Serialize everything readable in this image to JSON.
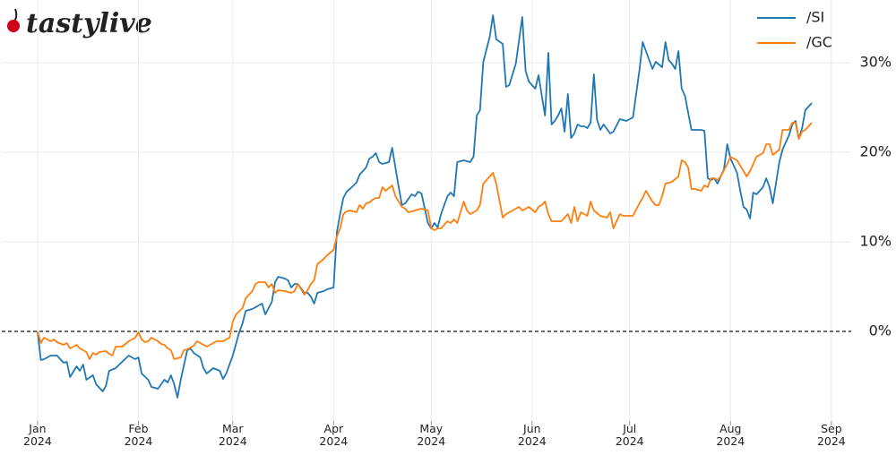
{
  "chart_data": {
    "type": "line",
    "logo": "tastylive",
    "xlim": [
      -11,
      249
    ],
    "ylim": [
      -10,
      37
    ],
    "xticks": [
      {
        "value": 0,
        "label": "Jan 2024"
      },
      {
        "value": 31,
        "label": "Feb 2024"
      },
      {
        "value": 60,
        "label": "Mar 2024"
      },
      {
        "value": 91,
        "label": "Apr 2024"
      },
      {
        "value": 121,
        "label": "May 2024"
      },
      {
        "value": 152,
        "label": "Jun 2024"
      },
      {
        "value": 182,
        "label": "Jul 2024"
      },
      {
        "value": 213,
        "label": "Aug 2024"
      },
      {
        "value": 244,
        "label": "Sep 2024"
      }
    ],
    "yticks": [
      {
        "value": 0,
        "label": "0%"
      },
      {
        "value": 10,
        "label": "10%"
      },
      {
        "value": 20,
        "label": "20%"
      },
      {
        "value": 30,
        "label": "30%"
      }
    ],
    "grid": true,
    "legend": "upper right",
    "series": [
      {
        "name": "/SI",
        "color": "#1f77b4",
        "x": [
          0,
          1,
          2,
          4,
          6,
          8,
          9,
          10,
          12,
          13,
          14,
          15,
          17,
          18,
          20,
          21,
          22,
          24,
          26,
          28,
          29,
          30,
          31,
          32,
          34,
          35,
          37,
          38,
          39,
          40,
          41,
          42,
          43,
          44,
          46,
          47,
          48,
          50,
          51,
          52,
          54,
          56,
          57,
          58,
          60,
          61,
          62,
          63,
          64,
          66,
          68,
          69,
          70,
          72,
          73,
          74,
          76,
          77,
          78,
          79,
          80,
          82,
          83,
          84,
          85,
          86,
          88,
          89,
          91,
          92,
          93,
          94,
          95,
          96,
          98,
          99,
          100,
          101,
          102,
          103,
          104,
          105,
          106,
          108,
          109,
          110,
          111,
          112,
          113,
          115,
          116,
          117,
          118,
          120,
          121,
          122,
          123,
          124,
          126,
          127,
          128,
          129,
          131,
          133,
          134,
          135,
          136,
          137,
          139,
          140,
          141,
          143,
          144,
          145,
          147,
          148,
          149,
          150,
          151,
          153,
          154,
          155,
          156,
          157,
          158,
          159,
          160,
          161,
          162,
          163,
          164,
          165,
          166,
          167,
          168,
          169,
          170,
          171,
          172,
          173,
          174,
          176,
          177,
          179,
          181,
          183,
          185,
          186,
          187,
          189,
          190,
          192,
          193,
          194,
          195,
          196,
          197,
          198,
          199,
          201,
          202,
          204,
          205,
          206,
          207,
          208,
          209,
          211,
          212,
          213,
          215,
          216,
          217,
          218,
          219,
          220,
          221,
          223,
          224,
          225,
          226,
          228,
          229,
          230,
          231,
          232,
          233,
          234,
          235,
          236,
          237,
          238
        ],
        "values": [
          0,
          -3.2,
          -3.1,
          -2.7,
          -2.7,
          -3.5,
          -3.4,
          -5.1,
          -3.9,
          -4.4,
          -3.7,
          -5.4,
          -4.9,
          -5.9,
          -6.7,
          -6.1,
          -4.4,
          -4.1,
          -3.4,
          -2.7,
          -2.9,
          -3.1,
          -2.9,
          -4.7,
          -5.4,
          -6.2,
          -6.4,
          -5.9,
          -5.4,
          -5.7,
          -4.9,
          -5.9,
          -7.4,
          -5.4,
          -2.1,
          -1.9,
          -2.4,
          -2.9,
          -4.1,
          -4.7,
          -4.1,
          -4.4,
          -5.3,
          -4.7,
          -2.7,
          -1.4,
          -0.1,
          0.9,
          2.3,
          2.5,
          2.9,
          3.1,
          1.9,
          3.3,
          5.5,
          6.1,
          5.9,
          5.7,
          4.9,
          5.3,
          5.3,
          4.3,
          4.3,
          3.9,
          3.1,
          4.3,
          4.5,
          4.7,
          4.9,
          11.1,
          13.1,
          14.9,
          15.6,
          15.9,
          16.6,
          17.5,
          17.9,
          18.3,
          19.3,
          19.5,
          19.9,
          18.9,
          18.7,
          18.9,
          20.5,
          18.3,
          16.1,
          14.1,
          14.3,
          15.3,
          15.1,
          15.6,
          15.4,
          12.1,
          11.5,
          12.1,
          11.6,
          13.1,
          15.1,
          15.5,
          15.1,
          18.9,
          19.1,
          18.9,
          19.5,
          24.1,
          24.7,
          30.1,
          32.9,
          35.3,
          32.6,
          32.1,
          27.3,
          27.5,
          29.9,
          32.5,
          35.1,
          29.1,
          27.9,
          27.1,
          28.6,
          26.3,
          24.1,
          31.1,
          23.1,
          23.5,
          24.1,
          24.9,
          22.3,
          26.5,
          21.6,
          22.1,
          23.1,
          22.9,
          22.9,
          22.7,
          23.3,
          28.7,
          23.6,
          22.5,
          23.1,
          22.1,
          22.3,
          23.7,
          23.5,
          23.9,
          29.1,
          32.3,
          31.3,
          29.3,
          30.1,
          29.5,
          32.3,
          30.3,
          29.9,
          29.3,
          31.3,
          27.1,
          26.3,
          22.5,
          22.5,
          22.5,
          22.4,
          17.1,
          16.9,
          17.1,
          16.5,
          18.1,
          20.9,
          19.3,
          17.7,
          15.7,
          13.9,
          13.6,
          12.6,
          15.5,
          15.3,
          16.1,
          17.1,
          16.1,
          14.3,
          18.9,
          20.3,
          21.1,
          21.9,
          23.1,
          23.5,
          21.5,
          22.7,
          24.7,
          25.1,
          25.5
        ]
      },
      {
        "name": "/GC",
        "color": "#ff7f0e",
        "x": [
          0,
          1,
          2,
          4,
          5,
          6,
          8,
          9,
          10,
          12,
          13,
          15,
          16,
          17,
          18,
          19,
          21,
          22,
          23,
          24,
          26,
          27,
          28,
          30,
          31,
          32,
          33,
          34,
          35,
          37,
          38,
          39,
          40,
          41,
          42,
          44,
          45,
          46,
          48,
          49,
          50,
          52,
          53,
          55,
          57,
          59,
          60,
          61,
          63,
          64,
          66,
          67,
          68,
          70,
          71,
          72,
          73,
          74,
          76,
          78,
          79,
          80,
          82,
          83,
          84,
          85,
          86,
          88,
          89,
          91,
          92,
          93,
          94,
          95,
          96,
          98,
          99,
          100,
          101,
          102,
          103,
          104,
          105,
          106,
          107,
          109,
          110,
          111,
          112,
          113,
          114,
          115,
          117,
          118,
          120,
          121,
          122,
          123,
          124,
          125,
          126,
          127,
          128,
          129,
          131,
          132,
          133,
          134,
          135,
          136,
          137,
          138,
          140,
          141,
          142,
          143,
          144,
          146,
          148,
          149,
          151,
          153,
          154,
          155,
          156,
          157,
          158,
          160,
          161,
          163,
          164,
          165,
          166,
          167,
          169,
          170,
          171,
          173,
          175,
          176,
          177,
          179,
          180,
          182,
          183,
          185,
          186,
          187,
          188,
          189,
          190,
          191,
          192,
          193,
          195,
          197,
          198,
          199,
          200,
          201,
          202,
          204,
          205,
          206,
          207,
          208,
          209,
          210,
          212,
          213,
          215,
          216,
          217,
          218,
          219,
          220,
          221,
          223,
          224,
          225,
          226,
          228,
          229,
          230,
          231,
          232,
          233,
          234,
          235,
          236,
          237,
          238
        ],
        "values": [
          0,
          -1.3,
          -0.7,
          -1.1,
          -0.9,
          -1.2,
          -1.5,
          -1.3,
          -1.9,
          -1.5,
          -1.9,
          -2.3,
          -3.1,
          -2.4,
          -2.6,
          -2.3,
          -2.2,
          -2.5,
          -2.7,
          -1.7,
          -1.7,
          -1.4,
          -1.1,
          -0.7,
          -0.1,
          -0.9,
          -1.2,
          -1.1,
          -0.7,
          -1.1,
          -1.4,
          -1.5,
          -1.9,
          -2.1,
          -3.1,
          -2.9,
          -2.1,
          -2.0,
          -1.6,
          -1.1,
          -1.3,
          -1.7,
          -1.5,
          -1.1,
          -1.1,
          -0.7,
          1.1,
          1.9,
          2.6,
          3.7,
          4.5,
          5.3,
          5.5,
          5.5,
          4.9,
          5.3,
          4.3,
          4.6,
          4.5,
          4.3,
          4.5,
          5.3,
          4.1,
          4.6,
          5.3,
          5.7,
          7.5,
          8.1,
          8.5,
          9.1,
          10.6,
          11.5,
          13.1,
          13.4,
          13.5,
          13.3,
          14.1,
          13.7,
          14.3,
          14.4,
          14.7,
          14.9,
          14.9,
          16.1,
          15.7,
          16.3,
          15.1,
          14.5,
          13.9,
          13.7,
          13.3,
          13.4,
          13.6,
          13.7,
          13.5,
          11.5,
          11.3,
          11.5,
          11.5,
          11.9,
          12.3,
          12.1,
          12.5,
          12.1,
          14.5,
          13.5,
          13.1,
          13.3,
          13.5,
          14.1,
          16.5,
          16.9,
          17.7,
          16.5,
          14.6,
          12.7,
          13.1,
          13.5,
          13.9,
          13.5,
          13.9,
          13.3,
          13.9,
          14.1,
          14.5,
          13.1,
          12.3,
          12.3,
          12.3,
          13.1,
          12.1,
          13.9,
          12.3,
          13.3,
          12.9,
          14.5,
          13.5,
          12.9,
          12.7,
          13.3,
          11.5,
          13.1,
          12.9,
          12.9,
          12.9,
          14.3,
          14.9,
          15.7,
          15.1,
          14.5,
          14.1,
          14.1,
          15.1,
          16.5,
          16.7,
          17.3,
          19.1,
          18.9,
          18.3,
          15.9,
          15.9,
          15.7,
          16.3,
          16.1,
          17.1,
          17.1,
          16.9,
          17.3,
          18.7,
          19.5,
          19.1,
          18.5,
          17.9,
          17.3,
          17.9,
          18.7,
          19.5,
          19.9,
          20.9,
          20.9,
          19.7,
          20.3,
          22.5,
          22.5,
          22.5,
          23.3,
          23.3,
          21.5,
          22.3,
          22.5,
          22.9,
          23.3
        ]
      }
    ]
  }
}
